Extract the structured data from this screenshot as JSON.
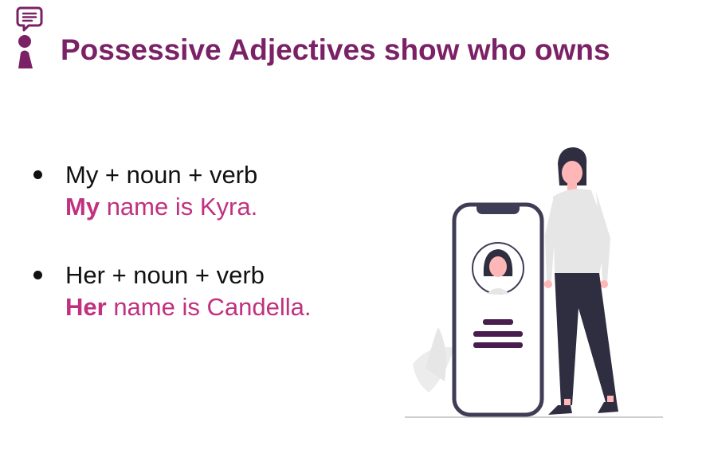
{
  "header": {
    "icon": "speaking-person-icon",
    "title": "Possessive Adjectives show who owns"
  },
  "bullets": [
    {
      "formula": "My + noun + verb",
      "example_bold": "My",
      "example_rest": " name is Kyra."
    },
    {
      "formula": "Her + noun + verb",
      "example_bold": "Her",
      "example_rest": " name is Candella."
    }
  ],
  "illustration": {
    "icon": "woman-with-phone-profile-illustration"
  },
  "colors": {
    "title": "#7b2166",
    "example": "#c0317f",
    "dark": "#3f3d56"
  }
}
